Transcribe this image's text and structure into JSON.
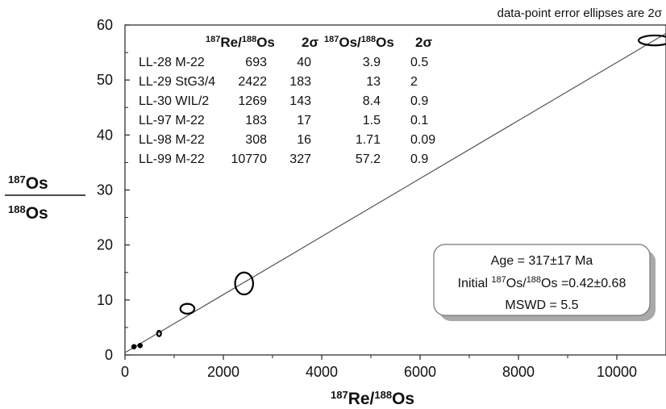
{
  "chart_data": {
    "type": "scatter",
    "note": "data-point error ellipses are 2σ",
    "xlim": [
      0,
      11000
    ],
    "ylim": [
      0,
      60
    ],
    "x_ticks": [
      0,
      2000,
      4000,
      6000,
      8000,
      10000
    ],
    "y_ticks": [
      0,
      10,
      20,
      30,
      40,
      50,
      60
    ],
    "x_tick_labels": [
      "0",
      "2000",
      "4000",
      "6000",
      "8000",
      "10000"
    ],
    "y_tick_labels": [
      "0",
      "10",
      "20",
      "30",
      "40",
      "50",
      "60"
    ],
    "xlabel": {
      "sup1": "187",
      "base1": "Re/",
      "sup2": "188",
      "base2": "Os"
    },
    "ylabel": {
      "num_sup": "187",
      "num_base": "Os",
      "den_sup": "188",
      "den_base": "Os"
    },
    "grid": false,
    "table_headers": {
      "col1": {
        "sup1": "187",
        "base1": "Re/",
        "sup2": "188",
        "base2": "Os"
      },
      "col2": "2σ",
      "col3": {
        "sup1": "187",
        "base1": "Os/",
        "sup2": "188",
        "base2": "Os"
      },
      "col4": "2σ"
    },
    "points": [
      {
        "sample": "LL-28 M-22",
        "x": 693,
        "x_err": 40,
        "y": 3.9,
        "y_err": 0.5,
        "x_str": "693",
        "x_err_str": "40",
        "y_str": "3.9",
        "y_err_str": "0.5"
      },
      {
        "sample": "LL-29 StG3/4",
        "x": 2422,
        "x_err": 183,
        "y": 13,
        "y_err": 2,
        "x_str": "2422",
        "x_err_str": "183",
        "y_str": "13",
        "y_err_str": "2"
      },
      {
        "sample": "LL-30 WIL/2",
        "x": 1269,
        "x_err": 143,
        "y": 8.4,
        "y_err": 0.9,
        "x_str": "1269",
        "x_err_str": "143",
        "y_str": "8.4",
        "y_err_str": "0.9"
      },
      {
        "sample": "LL-97 M-22",
        "x": 183,
        "x_err": 17,
        "y": 1.5,
        "y_err": 0.1,
        "x_str": "183",
        "x_err_str": "17",
        "y_str": "1.5",
        "y_err_str": "0.1"
      },
      {
        "sample": "LL-98 M-22",
        "x": 308,
        "x_err": 16,
        "y": 1.71,
        "y_err": 0.09,
        "x_str": "308",
        "x_err_str": "16",
        "y_str": "1.71",
        "y_err_str": "0.09"
      },
      {
        "sample": "LL-99 M-22",
        "x": 10770,
        "x_err": 327,
        "y": 57.2,
        "y_err": 0.9,
        "x_str": "10770",
        "x_err_str": "327",
        "y_str": "57.2",
        "y_err_str": "0.9"
      }
    ],
    "isochron": {
      "intercept": 0.42,
      "slope": 0.005277
    },
    "results": {
      "age": "Age = 317±17 Ma",
      "initial": {
        "pre": "Initial ",
        "sup1": "187",
        "mid": "Os/",
        "sup2": "188",
        "post": "Os =0.42±0.68"
      },
      "mswd": "MSWD = 5.5"
    },
    "colors": {
      "line": "#555555",
      "ellipse": "#000000",
      "box_border": "#777777",
      "box_shadow": "#a9a9a9"
    }
  }
}
